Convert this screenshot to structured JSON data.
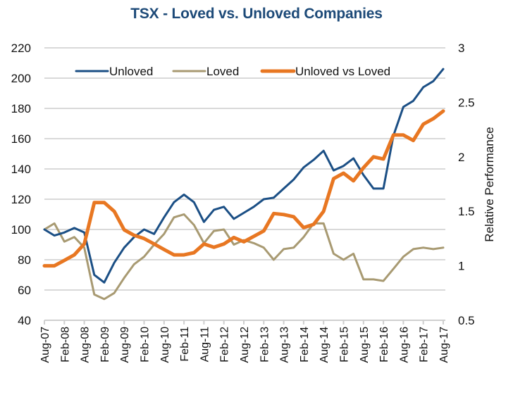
{
  "chart_data": {
    "type": "line",
    "title": "TSX - Loved vs. Unloved Companies",
    "xlabel": "",
    "ylabel": "",
    "y2label": "Relative Performance",
    "ylim": [
      40,
      220
    ],
    "y2lim": [
      0.5,
      3
    ],
    "yticks": [
      "40",
      "60",
      "80",
      "100",
      "120",
      "140",
      "160",
      "180",
      "200",
      "220"
    ],
    "y2ticks": [
      "0.5",
      "1",
      "1.5",
      "2",
      "2.5",
      "3"
    ],
    "grid": true,
    "legend": "top",
    "x_tick_labels": [
      "Aug-07",
      "Feb-08",
      "Aug-08",
      "Feb-09",
      "Aug-09",
      "Feb-10",
      "Aug-10",
      "Feb-11",
      "Aug-11",
      "Feb-12",
      "Aug-12",
      "Feb-13",
      "Aug-13",
      "Feb-14",
      "Aug-14",
      "Feb-15",
      "Aug-15",
      "Feb-16",
      "Aug-16",
      "Feb-17",
      "Aug-17"
    ],
    "x": [
      "Aug-07",
      "Nov-07",
      "Feb-08",
      "May-08",
      "Aug-08",
      "Nov-08",
      "Feb-09",
      "May-09",
      "Aug-09",
      "Nov-09",
      "Feb-10",
      "May-10",
      "Aug-10",
      "Nov-10",
      "Feb-11",
      "May-11",
      "Aug-11",
      "Nov-11",
      "Feb-12",
      "May-12",
      "Aug-12",
      "Nov-12",
      "Feb-13",
      "May-13",
      "Aug-13",
      "Nov-13",
      "Feb-14",
      "May-14",
      "Aug-14",
      "Nov-14",
      "Feb-15",
      "May-15",
      "Aug-15",
      "Nov-15",
      "Feb-16",
      "May-16",
      "Aug-16",
      "Nov-16",
      "Feb-17",
      "May-17",
      "Aug-17"
    ],
    "series": [
      {
        "name": "Unloved",
        "axis": "left",
        "color": "#1b4f85",
        "values": [
          100,
          96,
          98,
          101,
          98,
          70,
          65,
          78,
          88,
          95,
          100,
          97,
          108,
          118,
          123,
          118,
          105,
          113,
          115,
          107,
          111,
          115,
          120,
          121,
          127,
          133,
          141,
          146,
          152,
          139,
          142,
          147,
          136,
          127,
          127,
          162,
          181,
          185,
          194,
          198,
          206
        ]
      },
      {
        "name": "Loved",
        "axis": "left",
        "color": "#a89a72",
        "values": [
          100,
          104,
          92,
          95,
          88,
          57,
          54,
          58,
          68,
          77,
          82,
          90,
          97,
          108,
          110,
          103,
          91,
          99,
          100,
          90,
          93,
          91,
          88,
          80,
          87,
          88,
          95,
          104,
          104,
          84,
          80,
          84,
          67,
          67,
          66,
          74,
          82,
          87,
          88,
          87,
          88
        ]
      },
      {
        "name": "Unloved vs Loved",
        "axis": "right",
        "color": "#e87722",
        "values": [
          1.0,
          1.0,
          1.05,
          1.1,
          1.2,
          1.58,
          1.58,
          1.5,
          1.33,
          1.28,
          1.25,
          1.2,
          1.15,
          1.1,
          1.1,
          1.12,
          1.2,
          1.17,
          1.2,
          1.26,
          1.22,
          1.27,
          1.32,
          1.48,
          1.47,
          1.45,
          1.35,
          1.38,
          1.5,
          1.8,
          1.85,
          1.78,
          1.9,
          2.0,
          1.98,
          2.2,
          2.2,
          2.15,
          2.3,
          2.35,
          2.42
        ]
      }
    ]
  }
}
